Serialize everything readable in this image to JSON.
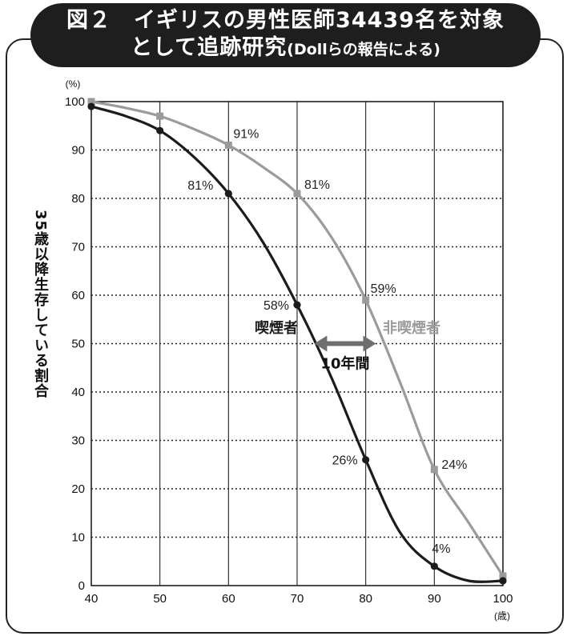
{
  "header": {
    "title_line1": "図２　イギリスの男性医師34439名を対象",
    "title_line2": "として追跡研究",
    "source": "(Dollらの報告による)"
  },
  "colors": {
    "smoker": "#1c1c1c",
    "nonsmoker": "#9b9b9b",
    "arrow": "#6e6e6e",
    "banner": "#1e1e1e"
  },
  "chart_data": {
    "type": "line",
    "title": "図２　イギリスの男性医師34439名を対象として追跡研究(Dollらの報告による)",
    "xlabel": "(歳)",
    "ylabel": "35歳以降生存している割合",
    "y_unit": "(%)",
    "xlim": [
      40,
      100
    ],
    "ylim": [
      0,
      100
    ],
    "x_ticks": [
      40,
      50,
      60,
      70,
      80,
      90,
      100
    ],
    "y_ticks": [
      0,
      10,
      20,
      30,
      40,
      50,
      60,
      70,
      80,
      90,
      100
    ],
    "grid": "horizontal dotted",
    "series": [
      {
        "name": "喫煙者",
        "color": "#1c1c1c",
        "marker": "circle",
        "points": [
          [
            40,
            99
          ],
          [
            50,
            94
          ],
          [
            60,
            81
          ],
          [
            70,
            58
          ],
          [
            80,
            26
          ],
          [
            90,
            4
          ],
          [
            100,
            1
          ]
        ],
        "curve": [
          [
            40,
            99
          ],
          [
            45,
            97
          ],
          [
            50,
            94
          ],
          [
            55,
            88.5
          ],
          [
            60,
            81
          ],
          [
            65,
            71
          ],
          [
            70,
            58
          ],
          [
            75,
            43
          ],
          [
            80,
            26
          ],
          [
            85,
            11
          ],
          [
            90,
            4
          ],
          [
            95,
            1
          ],
          [
            100,
            1
          ]
        ]
      },
      {
        "name": "非喫煙者",
        "color": "#9b9b9b",
        "marker": "square",
        "points": [
          [
            40,
            100
          ],
          [
            50,
            97
          ],
          [
            60,
            91
          ],
          [
            70,
            81
          ],
          [
            80,
            59
          ],
          [
            90,
            24
          ],
          [
            100,
            2
          ]
        ],
        "curve": [
          [
            40,
            100
          ],
          [
            45,
            98.7
          ],
          [
            50,
            97
          ],
          [
            55,
            94.3
          ],
          [
            60,
            91
          ],
          [
            65,
            86.5
          ],
          [
            70,
            81
          ],
          [
            75,
            72
          ],
          [
            80,
            59
          ],
          [
            85,
            42
          ],
          [
            90,
            24
          ],
          [
            95,
            13
          ],
          [
            100,
            2
          ]
        ]
      }
    ],
    "data_labels": [
      {
        "text": "91%",
        "x": 60,
        "y": 91,
        "series": "非喫煙者"
      },
      {
        "text": "81%",
        "x": 70,
        "y": 81,
        "series": "非喫煙者"
      },
      {
        "text": "59%",
        "x": 80,
        "y": 59,
        "series": "非喫煙者"
      },
      {
        "text": "24%",
        "x": 90,
        "y": 24,
        "series": "非喫煙者"
      },
      {
        "text": "81%",
        "x": 60,
        "y": 81,
        "series": "喫煙者"
      },
      {
        "text": "58%",
        "x": 70,
        "y": 58,
        "series": "喫煙者"
      },
      {
        "text": "26%",
        "x": 80,
        "y": 26,
        "series": "喫煙者"
      },
      {
        "text": "4%",
        "x": 90,
        "y": 4,
        "series": "喫煙者"
      }
    ],
    "annotation": {
      "text": "10年間",
      "x_from": 72.5,
      "x_to": 81.5,
      "y": 50
    }
  }
}
